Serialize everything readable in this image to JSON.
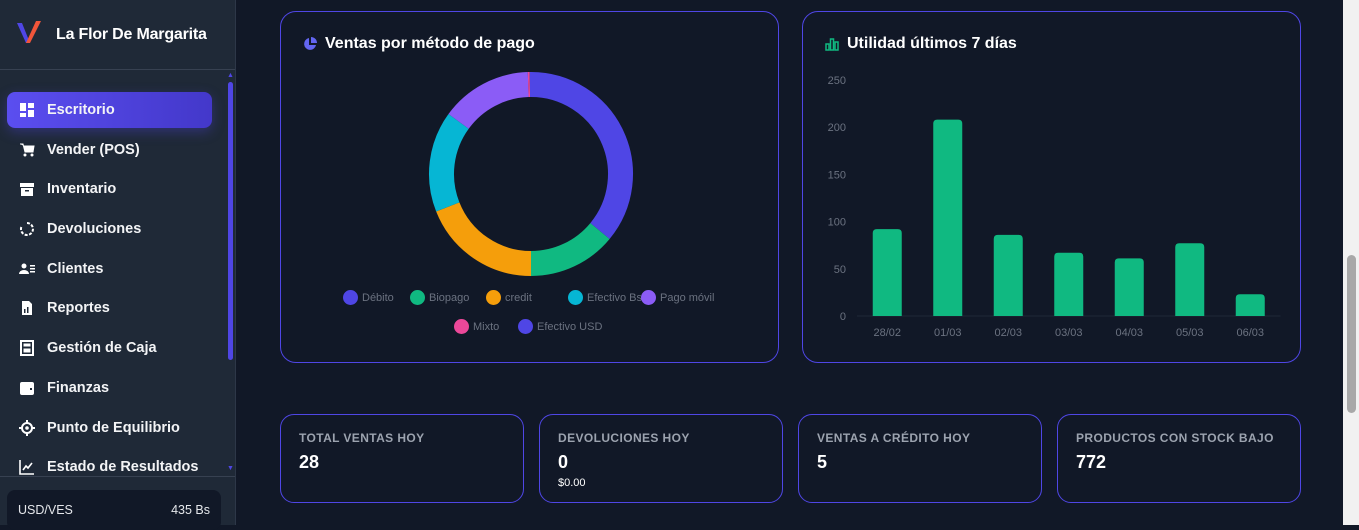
{
  "brand": {
    "name": "La Flor De Margarita"
  },
  "sidebar": {
    "items": [
      {
        "label": "Escritorio",
        "icon": "dashboard-icon",
        "active": true
      },
      {
        "label": "Vender (POS)",
        "icon": "cart-icon"
      },
      {
        "label": "Inventario",
        "icon": "archive-icon"
      },
      {
        "label": "Devoluciones",
        "icon": "refresh-icon"
      },
      {
        "label": "Clientes",
        "icon": "users-list-icon"
      },
      {
        "label": "Reportes",
        "icon": "report-file-icon"
      },
      {
        "label": "Gestión de Caja",
        "icon": "calculator-icon"
      },
      {
        "label": "Finanzas",
        "icon": "wallet-icon"
      },
      {
        "label": "Punto de Equilibrio",
        "icon": "target-icon"
      },
      {
        "label": "Estado de Resultados",
        "icon": "line-chart-icon"
      }
    ],
    "rate": {
      "label": "USD/VES",
      "value": "435 Bs"
    }
  },
  "colors": {
    "accent": "#4f46e5",
    "green": "#10b981",
    "bg": "#111827",
    "sidebar": "#1f2937"
  },
  "chart_data": [
    {
      "type": "pie",
      "title": "Ventas por método de pago",
      "donut": true,
      "categories": [
        "Débito",
        "Biopago",
        "credit",
        "Efectivo Bs",
        "Pago móvil",
        "Mixto",
        "Efectivo USD"
      ],
      "values": [
        36,
        14,
        19,
        16,
        14.5,
        0.3,
        0.2
      ],
      "colors": [
        "#4f46e5",
        "#10b981",
        "#f59e0b",
        "#06b6d4",
        "#8b5cf6",
        "#ec4899",
        "#4f46e5"
      ],
      "legend": "bottom"
    },
    {
      "type": "bar",
      "title": "Utilidad últimos 7 días",
      "categories": [
        "28/02",
        "01/03",
        "02/03",
        "03/03",
        "04/03",
        "05/03",
        "06/03"
      ],
      "values": [
        92,
        208,
        86,
        67,
        61,
        77,
        23
      ],
      "ylim": [
        0,
        250
      ],
      "yticks": [
        0,
        50,
        100,
        150,
        200,
        250
      ],
      "color": "#10b981",
      "grid": false
    }
  ],
  "stats": [
    {
      "label": "TOTAL VENTAS HOY",
      "value": "28"
    },
    {
      "label": "DEVOLUCIONES HOY",
      "value": "0",
      "sub": "$0.00"
    },
    {
      "label": "VENTAS A CRÉDITO HOY",
      "value": "5"
    },
    {
      "label": "PRODUCTOS CON STOCK BAJO",
      "value": "772"
    }
  ]
}
